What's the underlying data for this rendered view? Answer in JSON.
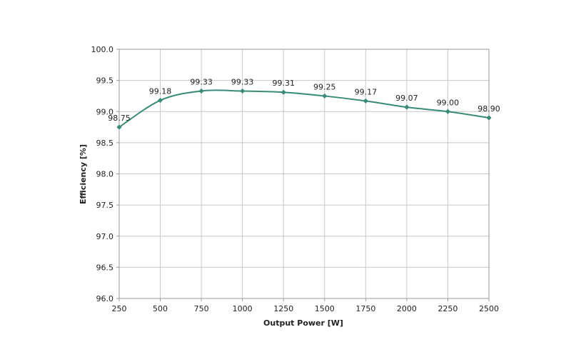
{
  "chart_data": {
    "type": "line",
    "x": [
      250,
      500,
      750,
      1000,
      1250,
      1500,
      1750,
      2000,
      2250,
      2500
    ],
    "series": [
      {
        "values": [
          98.75,
          99.18,
          99.33,
          99.33,
          99.31,
          99.25,
          99.17,
          99.07,
          99.0,
          98.9
        ],
        "data_labels": [
          "98.75",
          "99.18",
          "99.33",
          "99.33",
          "99.31",
          "99.25",
          "99.17",
          "99.07",
          "99.00",
          "98.90"
        ],
        "color": "#3a8a78",
        "marker": "diamond",
        "smooth": true
      }
    ],
    "xlabel": "Output Power [W]",
    "ylabel": "Efficiency [%]",
    "xlim": [
      250,
      2500
    ],
    "ylim": [
      96.0,
      100.0
    ],
    "x_ticks": [
      "250",
      "500",
      "750",
      "1000",
      "1250",
      "1500",
      "1750",
      "2000",
      "2250",
      "2500"
    ],
    "y_ticks": [
      "96.0",
      "96.5",
      "97.0",
      "97.5",
      "98.0",
      "98.5",
      "99.0",
      "99.5",
      "100.0"
    ],
    "grid": true,
    "legend": "none"
  }
}
